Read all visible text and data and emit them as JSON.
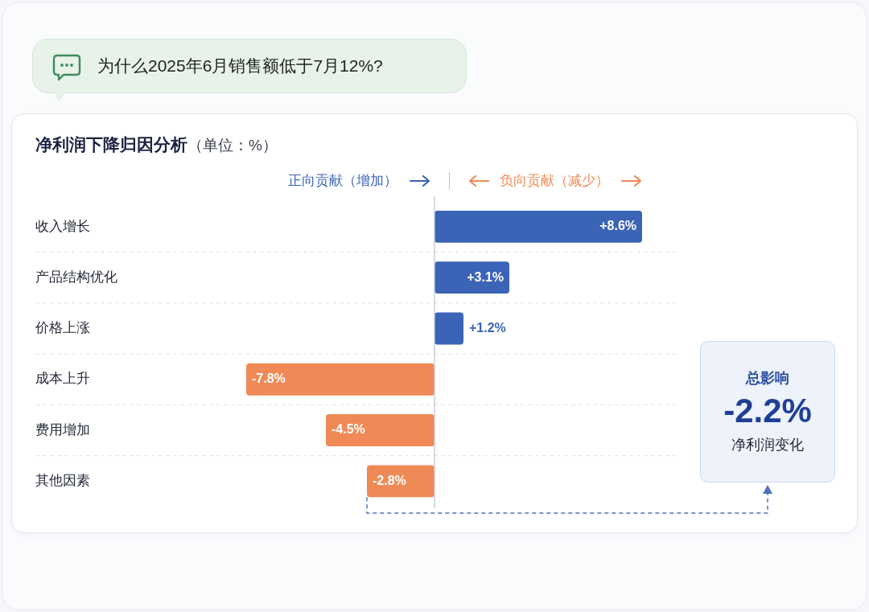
{
  "chart_data": {
    "type": "bar",
    "orientation": "horizontal",
    "title": "净利润下降归因分析",
    "subtitle": "（单位：%）",
    "categories": [
      "收入增长",
      "产品结构优化",
      "价格上涨",
      "成本上升",
      "费用增加",
      "其他因素"
    ],
    "series": [
      {
        "name": "正向贡献（增加）",
        "color": "#3b64b7",
        "values": [
          8.6,
          3.1,
          1.2,
          null,
          null,
          null
        ],
        "value_labels": [
          "+8.6%",
          "+3.1%",
          "+1.2%",
          null,
          null,
          null
        ]
      },
      {
        "name": "负向贡献（减少）",
        "color": "#ef8a56",
        "values": [
          null,
          null,
          null,
          -7.8,
          -4.5,
          -2.8
        ],
        "value_labels": [
          null,
          null,
          null,
          "-7.8%",
          "-4.5%",
          "-2.8%"
        ]
      }
    ],
    "ref_lines": [
      {
        "axis": "x",
        "value": 0,
        "color": "#c5c9d6"
      }
    ],
    "grid": "y",
    "tick_labels": "y",
    "legend": "top",
    "annotations": [
      "为什么2025年6月销售额低于7月12%?",
      "总影响",
      "-2.2%",
      "净利润变化"
    ]
  }
}
